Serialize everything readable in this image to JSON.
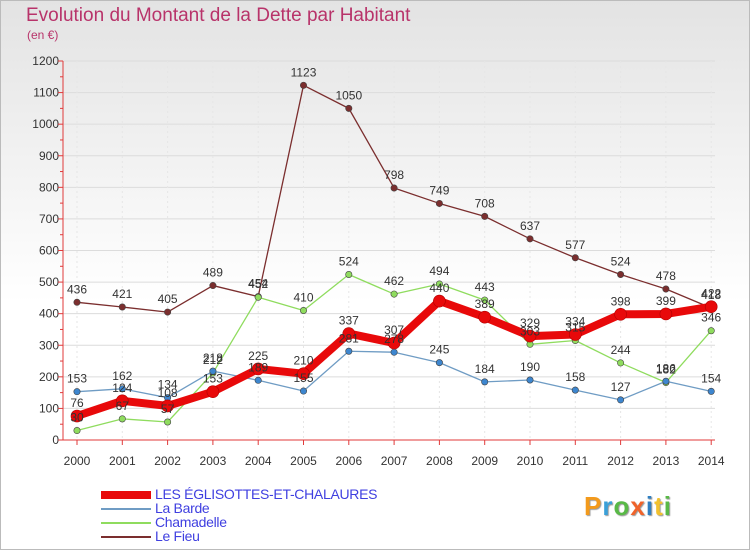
{
  "title": "Evolution du Montant de la Dette par Habitant",
  "unit": "(en €)",
  "logo": {
    "text": "Proxiti",
    "colors": [
      "#f39a1c",
      "#3aa0d8",
      "#59b947",
      "#f0632a",
      "#2f7fc1",
      "#f2c12e",
      "#59b947"
    ]
  },
  "chart_data": {
    "type": "line",
    "title": "Evolution du Montant de la Dette par Habitant",
    "ylabel": "(en €)",
    "xlabel": "",
    "ylim": [
      0,
      1200
    ],
    "yticks": [
      0,
      100,
      200,
      300,
      400,
      500,
      600,
      700,
      800,
      900,
      1000,
      1100,
      1200
    ],
    "x": [
      "2000",
      "2001",
      "2002",
      "2003",
      "2004",
      "2005",
      "2006",
      "2007",
      "2008",
      "2009",
      "2010",
      "2011",
      "2012",
      "2013",
      "2014"
    ],
    "grid": "horizontal",
    "legend_position": "bottom-left",
    "series": [
      {
        "name": "LES ÉGLISOTTES-ET-CHALAURES",
        "color": "#e8090a",
        "width": 8,
        "values": [
          76,
          124,
          108,
          153,
          225,
          210,
          337,
          307,
          440,
          389,
          329,
          334,
          398,
          399,
          422
        ],
        "labels": [
          "76",
          "124",
          "108",
          "153",
          "225",
          "210",
          "337",
          "307",
          "440",
          "389",
          "329",
          "334",
          "398",
          "399",
          "422"
        ]
      },
      {
        "name": "La Barde",
        "color": "#6f9cc4",
        "width": 1.3,
        "values": [
          153,
          162,
          134,
          218,
          189,
          155,
          281,
          278,
          245,
          184,
          190,
          158,
          127,
          186,
          154
        ],
        "labels": [
          "153",
          "162",
          "134",
          "218",
          "189",
          "155",
          "281",
          "278",
          "245",
          "184",
          "190",
          "158",
          "127",
          "186",
          "154"
        ]
      },
      {
        "name": "Chamadelle",
        "color": "#8fdc5e",
        "width": 1.3,
        "values": [
          30,
          67,
          57,
          212,
          452,
          410,
          524,
          462,
          494,
          443,
          303,
          315,
          244,
          182,
          346
        ],
        "labels": [
          "30",
          "67",
          "57",
          "212",
          "452",
          "410",
          "524",
          "462",
          "494",
          "443",
          "303",
          "315",
          "244",
          "182",
          "346"
        ]
      },
      {
        "name": "Le Fieu",
        "color": "#7b2e2e",
        "width": 1.3,
        "values": [
          436,
          421,
          405,
          489,
          454,
          1123,
          1050,
          798,
          749,
          708,
          637,
          577,
          524,
          478,
          418
        ],
        "labels": [
          "436",
          "421",
          "405",
          "489",
          "454",
          "1123",
          "1050",
          "798",
          "749",
          "708",
          "637",
          "577",
          "524",
          "478",
          "418"
        ]
      }
    ]
  }
}
